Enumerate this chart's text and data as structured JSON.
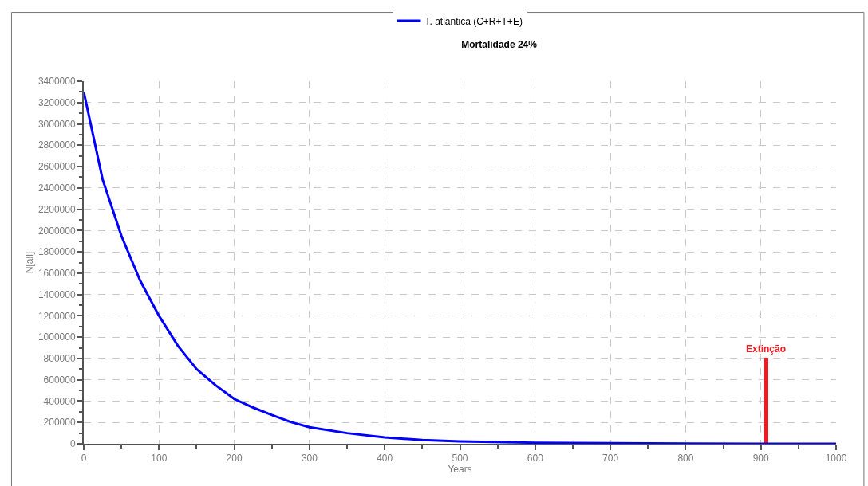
{
  "chart_data": {
    "type": "line",
    "title": "Mortalidade 24%",
    "xlabel": "Years",
    "ylabel": "N[all]",
    "series": [
      {
        "name": "T. atlantica (C+R+T+E)",
        "color": "#0000ff",
        "x": [
          0,
          25,
          50,
          75,
          100,
          125,
          150,
          175,
          200,
          225,
          250,
          275,
          300,
          350,
          400,
          450,
          500,
          600,
          700,
          800,
          900,
          1000
        ],
        "values": [
          3300000,
          2480000,
          1950000,
          1530000,
          1200000,
          920000,
          700000,
          550000,
          420000,
          340000,
          270000,
          205000,
          155000,
          100000,
          60000,
          35000,
          22000,
          10000,
          5000,
          2000,
          500,
          0
        ]
      },
      {
        "type": "bar",
        "color": "#ed1c24",
        "x": [
          907
        ],
        "values": [
          810000
        ]
      }
    ],
    "annotations": [
      {
        "text": "Extinção",
        "x": 907,
        "y": 810000
      }
    ],
    "xlim": [
      0,
      1000
    ],
    "xticks": [
      0,
      100,
      200,
      300,
      400,
      500,
      600,
      700,
      800,
      900,
      1000
    ],
    "ylim": [
      0,
      3400000
    ],
    "yticks": [
      0,
      200000,
      400000,
      600000,
      800000,
      1000000,
      1200000,
      1400000,
      1600000,
      1800000,
      2000000,
      2200000,
      2400000,
      2600000,
      2800000,
      3000000,
      3200000,
      3400000
    ],
    "grid": true,
    "legend": "top",
    "marker": "none",
    "line_style": "solid"
  }
}
